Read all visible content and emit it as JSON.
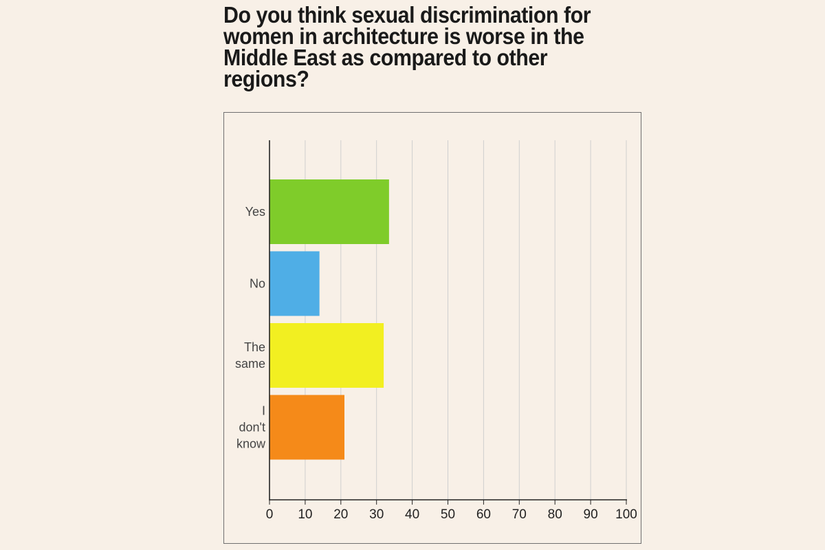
{
  "chart_data": {
    "type": "bar",
    "orientation": "horizontal",
    "title": "Do you think sexual discrimination for women in architecture is worse in the Middle East as compared to other regions?",
    "categories": [
      {
        "lines": [
          "Yes"
        ]
      },
      {
        "lines": [
          "No"
        ]
      },
      {
        "lines": [
          "The",
          "same"
        ]
      },
      {
        "lines": [
          "I",
          "don't",
          "know"
        ]
      }
    ],
    "values": [
      33.5,
      14,
      32,
      21
    ],
    "colors": [
      "#7fcc2a",
      "#4faee6",
      "#f2ef21",
      "#f58a19"
    ],
    "xlim": [
      0,
      100
    ],
    "xticks": [
      0,
      10,
      20,
      30,
      40,
      50,
      60,
      70,
      80,
      90,
      100
    ],
    "grid": true,
    "xlabel": "",
    "ylabel": ""
  }
}
